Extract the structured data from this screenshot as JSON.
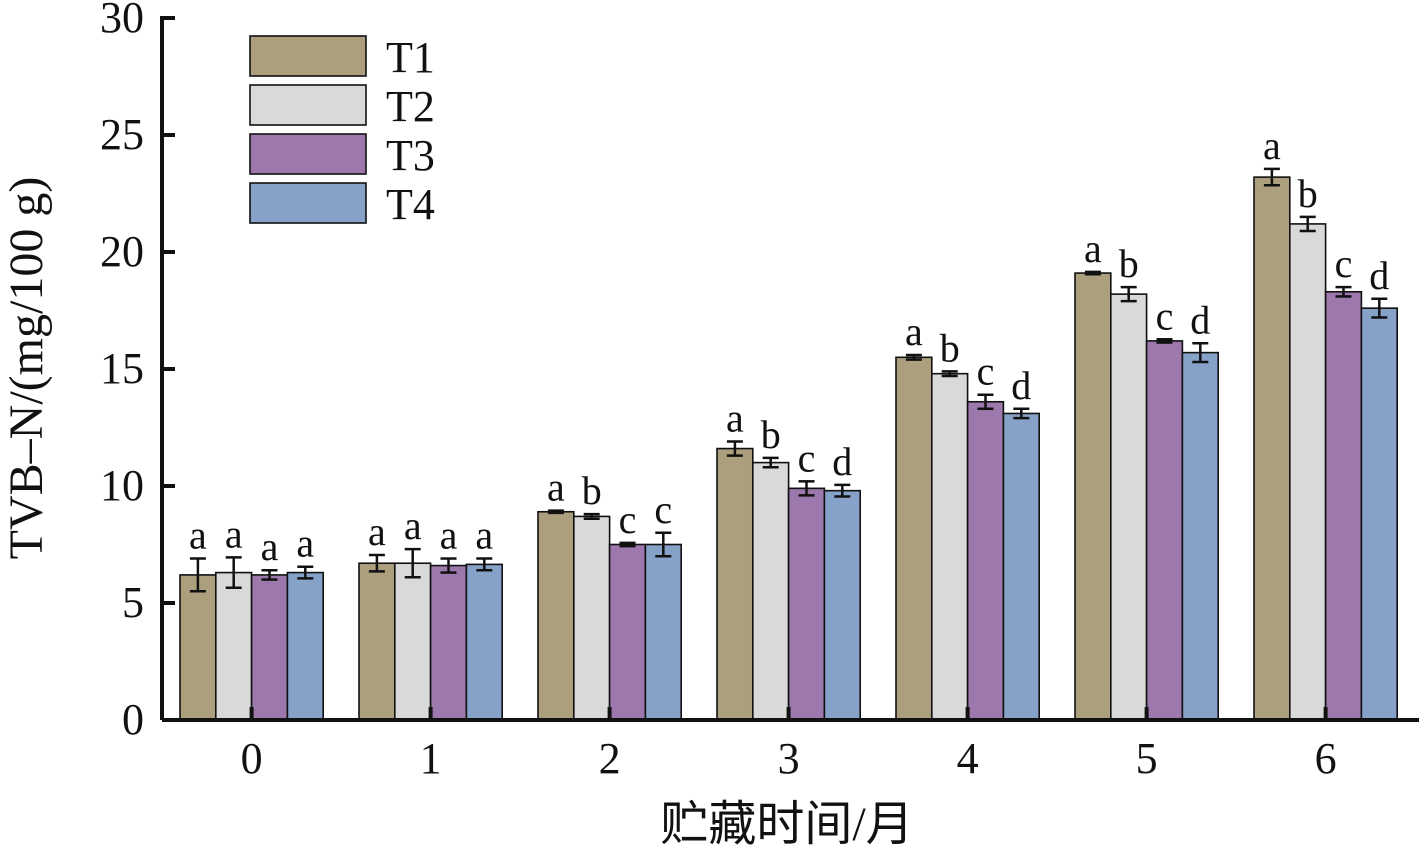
{
  "chart_data": {
    "type": "bar",
    "title": "",
    "xlabel": "贮藏时间/月",
    "ylabel": "TVB–N/(mg/100 g)",
    "ylim": [
      0,
      30
    ],
    "yticks": [
      "0",
      "5",
      "10",
      "15",
      "20",
      "25",
      "30"
    ],
    "categories": [
      "0",
      "1",
      "2",
      "3",
      "4",
      "5",
      "6"
    ],
    "legend_position": "top-left",
    "grid": false,
    "series": [
      {
        "name": "T1",
        "color": "#ab9f7e",
        "values": [
          6.2,
          6.7,
          8.9,
          11.6,
          15.5,
          19.1,
          23.2
        ],
        "errors": [
          0.7,
          0.35,
          0.05,
          0.3,
          0.1,
          0.05,
          0.35
        ],
        "significance": [
          "a",
          "a",
          "a",
          "a",
          "a",
          "a",
          "a"
        ]
      },
      {
        "name": "T2",
        "color": "#d9d9d9",
        "values": [
          6.3,
          6.7,
          8.7,
          11.0,
          14.8,
          18.2,
          21.2
        ],
        "errors": [
          0.65,
          0.6,
          0.1,
          0.2,
          0.1,
          0.3,
          0.3
        ],
        "significance": [
          "a",
          "a",
          "b",
          "b",
          "b",
          "b",
          "b"
        ]
      },
      {
        "name": "T3",
        "color": "#9c78ac",
        "values": [
          6.2,
          6.6,
          7.5,
          9.9,
          13.6,
          16.2,
          18.3
        ],
        "errors": [
          0.2,
          0.3,
          0.07,
          0.3,
          0.3,
          0.07,
          0.2
        ],
        "significance": [
          "a",
          "a",
          "c",
          "c",
          "c",
          "c",
          "c"
        ]
      },
      {
        "name": "T4",
        "color": "#87a2c8",
        "values": [
          6.3,
          6.65,
          7.5,
          9.8,
          13.1,
          15.7,
          17.6
        ],
        "errors": [
          0.25,
          0.25,
          0.5,
          0.25,
          0.2,
          0.4,
          0.4
        ],
        "significance": [
          "a",
          "a",
          "c",
          "d",
          "d",
          "d",
          "d"
        ]
      }
    ]
  }
}
